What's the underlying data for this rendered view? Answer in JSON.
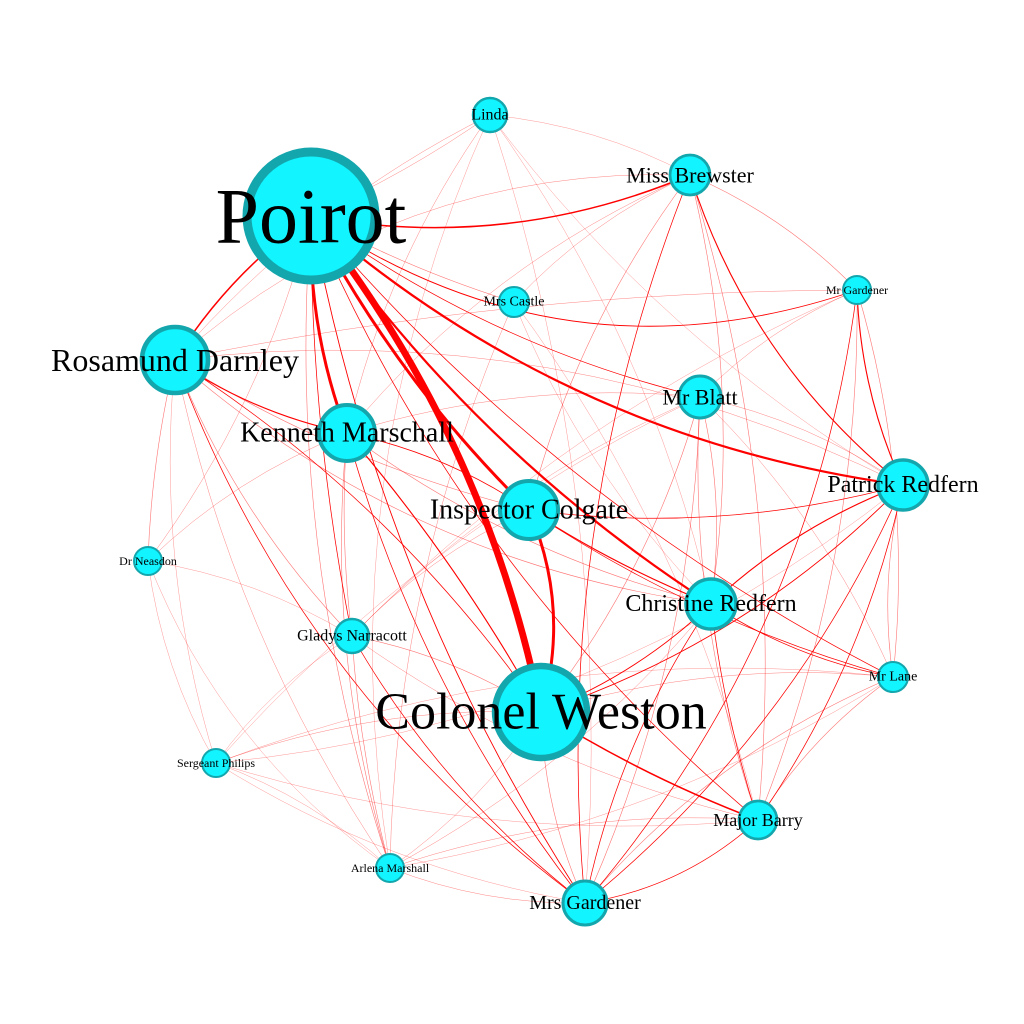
{
  "colors": {
    "node_fill": "#12f4ff",
    "node_stroke": "#14a6ad",
    "edge": "#ff0000",
    "background": "#ffffff"
  },
  "graph": {
    "nodes": [
      {
        "id": "poirot",
        "label": "Poirot",
        "weight": 10
      },
      {
        "id": "colonel-weston",
        "label": "Colonel Weston",
        "weight": 8
      },
      {
        "id": "rosamund-darnley",
        "label": "Rosamund Darnley",
        "weight": 5
      },
      {
        "id": "kenneth-marschall",
        "label": "Kenneth Marschall",
        "weight": 4.5
      },
      {
        "id": "inspector-colgate",
        "label": "Inspector Colgate",
        "weight": 4.5
      },
      {
        "id": "patrick-redfern",
        "label": "Patrick Redfern",
        "weight": 4
      },
      {
        "id": "christine-redfern",
        "label": "Christine Redfern",
        "weight": 4
      },
      {
        "id": "mrs-gardener",
        "label": "Mrs Gardener",
        "weight": 3.6
      },
      {
        "id": "miss-brewster",
        "label": "Miss Brewster",
        "weight": 3.4
      },
      {
        "id": "mr-blatt",
        "label": "Mr Blatt",
        "weight": 3.4
      },
      {
        "id": "major-barry",
        "label": "Major Barry",
        "weight": 3
      },
      {
        "id": "gladys-narracott",
        "label": "Gladys Narracott",
        "weight": 2.8
      },
      {
        "id": "linda",
        "label": "Linda",
        "weight": 2.4
      },
      {
        "id": "mrs-castle",
        "label": "Mrs Castle",
        "weight": 2.2
      },
      {
        "id": "mr-lane",
        "label": "Mr Lane",
        "weight": 2.2
      },
      {
        "id": "mr-gardener",
        "label": "Mr Gardener",
        "weight": 1.7
      },
      {
        "id": "dr-neasdon",
        "label": "Dr Neasdon",
        "weight": 1.7
      },
      {
        "id": "sergeant-philips",
        "label": "Sergeant Philips",
        "weight": 1.7
      },
      {
        "id": "arlena-marshall",
        "label": "Arlena Marshall",
        "weight": 1.7
      }
    ],
    "edges": [
      {
        "source": "poirot",
        "target": "colonel-weston",
        "weight": 9,
        "bend": -0.12
      },
      {
        "source": "poirot",
        "target": "kenneth-marschall",
        "weight": 4,
        "bend": 0.1
      },
      {
        "source": "poirot",
        "target": "inspector-colgate",
        "weight": 4,
        "bend": 0.08
      },
      {
        "source": "poirot",
        "target": "christine-redfern",
        "weight": 3,
        "bend": 0.1
      },
      {
        "source": "poirot",
        "target": "patrick-redfern",
        "weight": 3,
        "bend": 0.15
      },
      {
        "source": "poirot",
        "target": "miss-brewster",
        "weight": 2,
        "bend": 0.15
      },
      {
        "source": "poirot",
        "target": "rosamund-darnley",
        "weight": 2,
        "bend": 0.1
      },
      {
        "source": "poirot",
        "target": "mr-gardener",
        "weight": 1.2,
        "bend": 0.25
      },
      {
        "source": "poirot",
        "target": "mrs-gardener",
        "weight": 1.2,
        "bend": 0.1
      },
      {
        "source": "poirot",
        "target": "linda",
        "weight": 0.6,
        "bend": 0.05
      },
      {
        "source": "poirot",
        "target": "mrs-castle",
        "weight": 0.8,
        "bend": 0.05
      },
      {
        "source": "poirot",
        "target": "mr-blatt",
        "weight": 1,
        "bend": 0.1
      },
      {
        "source": "poirot",
        "target": "gladys-narracott",
        "weight": 1,
        "bend": 0.05
      },
      {
        "source": "poirot",
        "target": "arlena-marshall",
        "weight": 0.8,
        "bend": 0.1
      },
      {
        "source": "poirot",
        "target": "dr-neasdon",
        "weight": 0.6,
        "bend": -0.1
      },
      {
        "source": "poirot",
        "target": "major-barry",
        "weight": 1,
        "bend": 0.12
      },
      {
        "source": "poirot",
        "target": "mr-lane",
        "weight": 1,
        "bend": 0.1
      },
      {
        "source": "colonel-weston",
        "target": "inspector-colgate",
        "weight": 4,
        "bend": 0.18
      },
      {
        "source": "colonel-weston",
        "target": "major-barry",
        "weight": 2,
        "bend": 0.05
      },
      {
        "source": "colonel-weston",
        "target": "kenneth-marschall",
        "weight": 1.5,
        "bend": 0.05
      },
      {
        "source": "colonel-weston",
        "target": "patrick-redfern",
        "weight": 1.2,
        "bend": 0.12
      },
      {
        "source": "colonel-weston",
        "target": "christine-redfern",
        "weight": 1.2,
        "bend": 0.1
      },
      {
        "source": "colonel-weston",
        "target": "rosamund-darnley",
        "weight": 1,
        "bend": 0.1
      },
      {
        "source": "colonel-weston",
        "target": "gladys-narracott",
        "weight": 0.8,
        "bend": 0.1
      },
      {
        "source": "colonel-weston",
        "target": "sergeant-philips",
        "weight": 0.6,
        "bend": 0.1
      },
      {
        "source": "colonel-weston",
        "target": "arlena-marshall",
        "weight": 0.6,
        "bend": -0.1
      },
      {
        "source": "colonel-weston",
        "target": "mrs-gardener",
        "weight": 0.8,
        "bend": 0.1
      },
      {
        "source": "colonel-weston",
        "target": "mr-lane",
        "weight": 0.6,
        "bend": -0.1
      },
      {
        "source": "colonel-weston",
        "target": "mr-blatt",
        "weight": 0.8,
        "bend": 0.1
      },
      {
        "source": "inspector-colgate",
        "target": "christine-redfern",
        "weight": 1.5,
        "bend": 0.05
      },
      {
        "source": "inspector-colgate",
        "target": "patrick-redfern",
        "weight": 1,
        "bend": 0.1
      },
      {
        "source": "inspector-colgate",
        "target": "mr-lane",
        "weight": 1,
        "bend": 0.08
      },
      {
        "source": "inspector-colgate",
        "target": "miss-brewster",
        "weight": 0.8,
        "bend": -0.1
      },
      {
        "source": "inspector-colgate",
        "target": "kenneth-marschall",
        "weight": 1,
        "bend": 0.1
      },
      {
        "source": "inspector-colgate",
        "target": "gladys-narracott",
        "weight": 0.6,
        "bend": 0.1
      },
      {
        "source": "inspector-colgate",
        "target": "rosamund-darnley",
        "weight": 0.8,
        "bend": -0.08
      },
      {
        "source": "rosamund-darnley",
        "target": "kenneth-marschall",
        "weight": 1.5,
        "bend": 0.1
      },
      {
        "source": "rosamund-darnley",
        "target": "dr-neasdon",
        "weight": 0.8,
        "bend": 0.05
      },
      {
        "source": "rosamund-darnley",
        "target": "gladys-narracott",
        "weight": 0.8,
        "bend": 0.1
      },
      {
        "source": "rosamund-darnley",
        "target": "mrs-gardener",
        "weight": 1,
        "bend": 0.15
      },
      {
        "source": "rosamund-darnley",
        "target": "christine-redfern",
        "weight": 0.8,
        "bend": 0.15
      },
      {
        "source": "rosamund-darnley",
        "target": "patrick-redfern",
        "weight": 0.6,
        "bend": -0.15
      },
      {
        "source": "rosamund-darnley",
        "target": "arlena-marshall",
        "weight": 0.6,
        "bend": 0.1
      },
      {
        "source": "rosamund-darnley",
        "target": "sergeant-philips",
        "weight": 0.5,
        "bend": 0.1
      },
      {
        "source": "rosamund-darnley",
        "target": "linda",
        "weight": 0.6,
        "bend": -0.1
      },
      {
        "source": "rosamund-darnley",
        "target": "miss-brewster",
        "weight": 0.6,
        "bend": -0.2
      },
      {
        "source": "kenneth-marschall",
        "target": "gladys-narracott",
        "weight": 0.8,
        "bend": 0.05
      },
      {
        "source": "kenneth-marschall",
        "target": "mrs-gardener",
        "weight": 1,
        "bend": 0.1
      },
      {
        "source": "kenneth-marschall",
        "target": "christine-redfern",
        "weight": 0.8,
        "bend": 0.1
      },
      {
        "source": "kenneth-marschall",
        "target": "arlena-marshall",
        "weight": 0.8,
        "bend": 0.1
      },
      {
        "source": "kenneth-marschall",
        "target": "dr-neasdon",
        "weight": 0.6,
        "bend": 0.1
      },
      {
        "source": "kenneth-marschall",
        "target": "mr-blatt",
        "weight": 0.6,
        "bend": -0.1
      },
      {
        "source": "kenneth-marschall",
        "target": "linda",
        "weight": 0.6,
        "bend": -0.1
      },
      {
        "source": "patrick-redfern",
        "target": "christine-redfern",
        "weight": 1.5,
        "bend": 0.1
      },
      {
        "source": "patrick-redfern",
        "target": "mr-gardener",
        "weight": 1.5,
        "bend": -0.1
      },
      {
        "source": "patrick-redfern",
        "target": "miss-brewster",
        "weight": 1.5,
        "bend": -0.15
      },
      {
        "source": "patrick-redfern",
        "target": "mr-lane",
        "weight": 0.8,
        "bend": 0.1
      },
      {
        "source": "patrick-redfern",
        "target": "major-barry",
        "weight": 1,
        "bend": -0.1
      },
      {
        "source": "patrick-redfern",
        "target": "mrs-gardener",
        "weight": 1,
        "bend": -0.12
      },
      {
        "source": "patrick-redfern",
        "target": "mr-blatt",
        "weight": 0.6,
        "bend": 0.1
      },
      {
        "source": "patrick-redfern",
        "target": "sergeant-philips",
        "weight": 0.5,
        "bend": -0.15
      },
      {
        "source": "christine-redfern",
        "target": "mr-lane",
        "weight": 1,
        "bend": 0.1
      },
      {
        "source": "christine-redfern",
        "target": "major-barry",
        "weight": 1,
        "bend": 0.05
      },
      {
        "source": "christine-redfern",
        "target": "mrs-gardener",
        "weight": 1,
        "bend": 0.1
      },
      {
        "source": "christine-redfern",
        "target": "mr-blatt",
        "weight": 0.8,
        "bend": 0.1
      },
      {
        "source": "christine-redfern",
        "target": "arlena-marshall",
        "weight": 0.6,
        "bend": -0.1
      },
      {
        "source": "christine-redfern",
        "target": "miss-brewster",
        "weight": 0.8,
        "bend": 0.1
      },
      {
        "source": "miss-brewster",
        "target": "mrs-gardener",
        "weight": 1,
        "bend": 0.12
      },
      {
        "source": "miss-brewster",
        "target": "major-barry",
        "weight": 0.8,
        "bend": -0.1
      },
      {
        "source": "miss-brewster",
        "target": "mr-gardener",
        "weight": 0.8,
        "bend": -0.1
      },
      {
        "source": "miss-brewster",
        "target": "mrs-castle",
        "weight": 0.6,
        "bend": 0.1
      },
      {
        "source": "miss-brewster",
        "target": "linda",
        "weight": 0.5,
        "bend": 0.1
      },
      {
        "source": "miss-brewster",
        "target": "kenneth-marschall",
        "weight": 0.6,
        "bend": 0.12
      },
      {
        "source": "mr-gardener",
        "target": "mrs-gardener",
        "weight": 1,
        "bend": -0.15
      },
      {
        "source": "mr-gardener",
        "target": "mr-lane",
        "weight": 0.8,
        "bend": -0.1
      },
      {
        "source": "mr-gardener",
        "target": "major-barry",
        "weight": 0.8,
        "bend": -0.1
      },
      {
        "source": "mr-gardener",
        "target": "mr-blatt",
        "weight": 0.6,
        "bend": 0.1
      },
      {
        "source": "mr-gardener",
        "target": "gladys-narracott",
        "weight": 0.5,
        "bend": 0.1
      },
      {
        "source": "mr-gardener",
        "target": "rosamund-darnley",
        "weight": 0.6,
        "bend": 0.05
      },
      {
        "source": "mr-blatt",
        "target": "major-barry",
        "weight": 0.8,
        "bend": 0.1
      },
      {
        "source": "mr-blatt",
        "target": "mrs-gardener",
        "weight": 0.8,
        "bend": -0.1
      },
      {
        "source": "mr-blatt",
        "target": "mr-lane",
        "weight": 0.6,
        "bend": -0.1
      },
      {
        "source": "mr-blatt",
        "target": "gladys-narracott",
        "weight": 0.5,
        "bend": 0.1
      },
      {
        "source": "mr-blatt",
        "target": "sergeant-philips",
        "weight": 0.5,
        "bend": 0.1
      },
      {
        "source": "major-barry",
        "target": "mrs-gardener",
        "weight": 1,
        "bend": -0.15
      },
      {
        "source": "major-barry",
        "target": "mr-lane",
        "weight": 0.8,
        "bend": -0.1
      },
      {
        "source": "major-barry",
        "target": "sergeant-philips",
        "weight": 0.5,
        "bend": -0.1
      },
      {
        "source": "major-barry",
        "target": "arlena-marshall",
        "weight": 0.6,
        "bend": 0.1
      },
      {
        "source": "major-barry",
        "target": "gladys-narracott",
        "weight": 0.6,
        "bend": -0.1
      },
      {
        "source": "mrs-gardener",
        "target": "gladys-narracott",
        "weight": 1,
        "bend": -0.1
      },
      {
        "source": "mrs-gardener",
        "target": "mr-lane",
        "weight": 0.8,
        "bend": -0.12
      },
      {
        "source": "mrs-gardener",
        "target": "arlena-marshall",
        "weight": 0.6,
        "bend": -0.1
      },
      {
        "source": "mrs-gardener",
        "target": "sergeant-philips",
        "weight": 0.5,
        "bend": -0.1
      },
      {
        "source": "mrs-gardener",
        "target": "linda",
        "weight": 0.5,
        "bend": 0.1
      },
      {
        "source": "gladys-narracott",
        "target": "arlena-marshall",
        "weight": 0.8,
        "bend": 0.05
      },
      {
        "source": "gladys-narracott",
        "target": "dr-neasdon",
        "weight": 0.5,
        "bend": 0.1
      },
      {
        "source": "gladys-narracott",
        "target": "sergeant-philips",
        "weight": 0.5,
        "bend": 0.1
      },
      {
        "source": "mrs-castle",
        "target": "arlena-marshall",
        "weight": 0.6,
        "bend": 0.1
      },
      {
        "source": "mrs-castle",
        "target": "christine-redfern",
        "weight": 0.5,
        "bend": 0.1
      },
      {
        "source": "mrs-castle",
        "target": "major-barry",
        "weight": 0.5,
        "bend": -0.1
      },
      {
        "source": "linda",
        "target": "arlena-marshall",
        "weight": 0.5,
        "bend": 0.15
      },
      {
        "source": "linda",
        "target": "christine-redfern",
        "weight": 0.5,
        "bend": -0.1
      },
      {
        "source": "linda",
        "target": "patrick-redfern",
        "weight": 0.5,
        "bend": 0.1
      },
      {
        "source": "mr-lane",
        "target": "sergeant-philips",
        "weight": 0.5,
        "bend": 0.12
      },
      {
        "source": "mr-lane",
        "target": "arlena-marshall",
        "weight": 0.5,
        "bend": -0.1
      },
      {
        "source": "dr-neasdon",
        "target": "sergeant-philips",
        "weight": 0.5,
        "bend": 0.1
      },
      {
        "source": "dr-neasdon",
        "target": "arlena-marshall",
        "weight": 0.5,
        "bend": 0.15
      },
      {
        "source": "sergeant-philips",
        "target": "arlena-marshall",
        "weight": 0.5,
        "bend": -0.1
      }
    ]
  }
}
